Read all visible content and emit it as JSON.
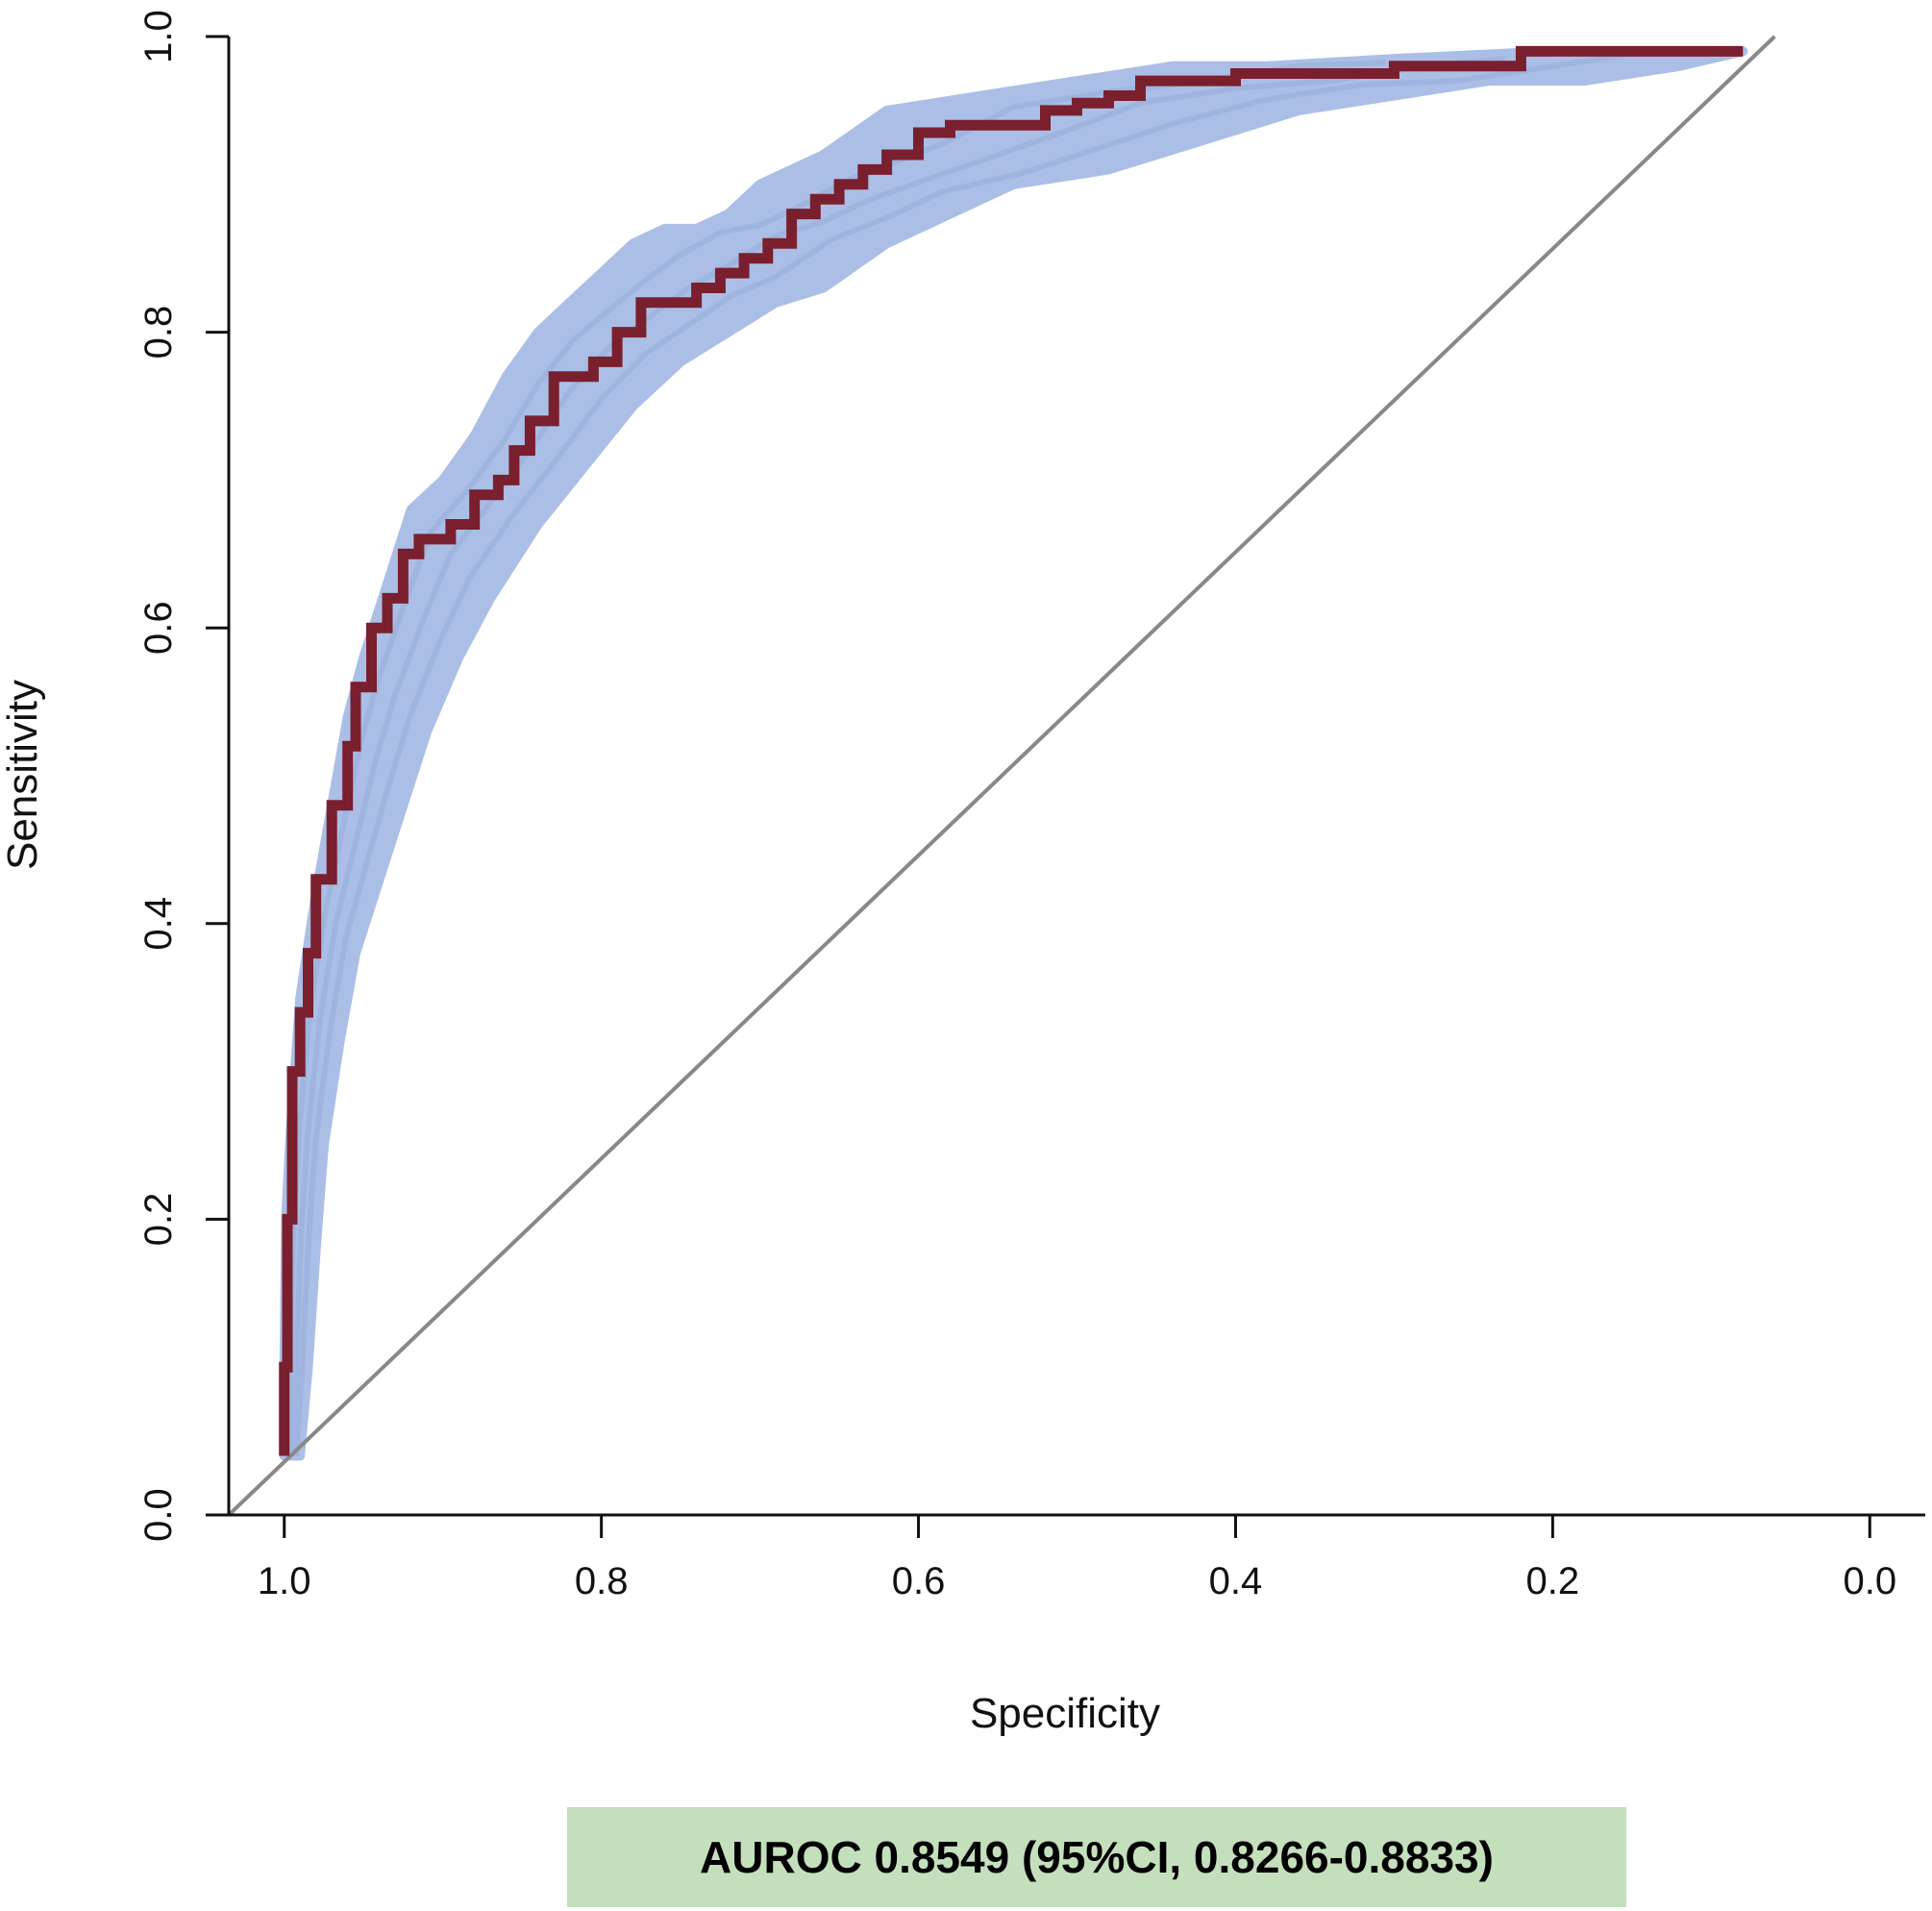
{
  "chart_data": {
    "type": "line",
    "title": "",
    "xlabel": "Specificity",
    "ylabel": "Sensitivity",
    "x_reversed": true,
    "xlim": [
      1.035,
      -0.035
    ],
    "ylim": [
      0.0,
      1.0
    ],
    "x_ticks": [
      "1.0",
      "0.8",
      "0.6",
      "0.4",
      "0.2",
      "0.0"
    ],
    "y_ticks": [
      "0.0",
      "0.2",
      "0.4",
      "0.6",
      "0.8",
      "1.0"
    ],
    "grid": false,
    "legend": "none",
    "annotation": "AUROC 0.8549 (95%CI, 0.8266-0.8833)",
    "colors": {
      "roc": "#7a1f2e",
      "bootstrap": "#abbfe6",
      "reference": "#888888",
      "annotation_bg": "#c4dfbc"
    },
    "series": [
      {
        "role": "roc",
        "x": [
          1.0,
          0.998,
          0.995,
          0.99,
          0.985,
          0.98,
          0.97,
          0.96,
          0.955,
          0.945,
          0.935,
          0.925,
          0.915,
          0.905,
          0.895,
          0.88,
          0.865,
          0.855,
          0.845,
          0.83,
          0.82,
          0.805,
          0.79,
          0.775,
          0.765,
          0.755,
          0.74,
          0.725,
          0.71,
          0.695,
          0.68,
          0.665,
          0.65,
          0.635,
          0.62,
          0.6,
          0.58,
          0.56,
          0.54,
          0.52,
          0.5,
          0.48,
          0.46,
          0.44,
          0.4,
          0.36,
          0.3,
          0.26,
          0.22,
          0.18,
          0.14,
          0.08
        ],
        "y": [
          0.04,
          0.1,
          0.2,
          0.3,
          0.34,
          0.38,
          0.43,
          0.48,
          0.52,
          0.56,
          0.6,
          0.62,
          0.65,
          0.66,
          0.66,
          0.67,
          0.69,
          0.7,
          0.72,
          0.74,
          0.77,
          0.77,
          0.78,
          0.8,
          0.82,
          0.82,
          0.82,
          0.83,
          0.84,
          0.85,
          0.86,
          0.88,
          0.89,
          0.9,
          0.91,
          0.92,
          0.935,
          0.94,
          0.94,
          0.94,
          0.95,
          0.955,
          0.96,
          0.97,
          0.97,
          0.975,
          0.975,
          0.98,
          0.98,
          0.99,
          0.99,
          0.99
        ]
      },
      {
        "role": "bootstrap_upper",
        "x": [
          1.0,
          1.0,
          0.999,
          0.996,
          0.99,
          0.98,
          0.97,
          0.96,
          0.95,
          0.935,
          0.92,
          0.9,
          0.88,
          0.86,
          0.84,
          0.82,
          0.8,
          0.78,
          0.76,
          0.74,
          0.72,
          0.7,
          0.68,
          0.66,
          0.62,
          0.56,
          0.5,
          0.44,
          0.38,
          0.3,
          0.2,
          0.12,
          0.08
        ],
        "y": [
          0.04,
          0.1,
          0.2,
          0.26,
          0.35,
          0.42,
          0.48,
          0.54,
          0.58,
          0.63,
          0.68,
          0.7,
          0.73,
          0.77,
          0.8,
          0.82,
          0.84,
          0.86,
          0.87,
          0.87,
          0.88,
          0.9,
          0.91,
          0.92,
          0.95,
          0.96,
          0.97,
          0.98,
          0.98,
          0.985,
          0.99,
          0.99,
          0.99
        ]
      },
      {
        "role": "bootstrap_lower",
        "x": [
          0.99,
          0.985,
          0.98,
          0.975,
          0.965,
          0.955,
          0.94,
          0.925,
          0.91,
          0.89,
          0.87,
          0.84,
          0.81,
          0.78,
          0.75,
          0.72,
          0.69,
          0.66,
          0.62,
          0.58,
          0.54,
          0.48,
          0.42,
          0.36,
          0.3,
          0.24,
          0.18,
          0.12,
          0.08
        ],
        "y": [
          0.04,
          0.1,
          0.18,
          0.25,
          0.32,
          0.38,
          0.43,
          0.48,
          0.53,
          0.58,
          0.62,
          0.67,
          0.71,
          0.75,
          0.78,
          0.8,
          0.82,
          0.83,
          0.86,
          0.88,
          0.9,
          0.91,
          0.93,
          0.95,
          0.96,
          0.97,
          0.97,
          0.98,
          0.99
        ]
      },
      {
        "role": "reference",
        "x": [
          1.035,
          0.06
        ],
        "y": [
          0.0,
          1.0
        ]
      }
    ]
  }
}
